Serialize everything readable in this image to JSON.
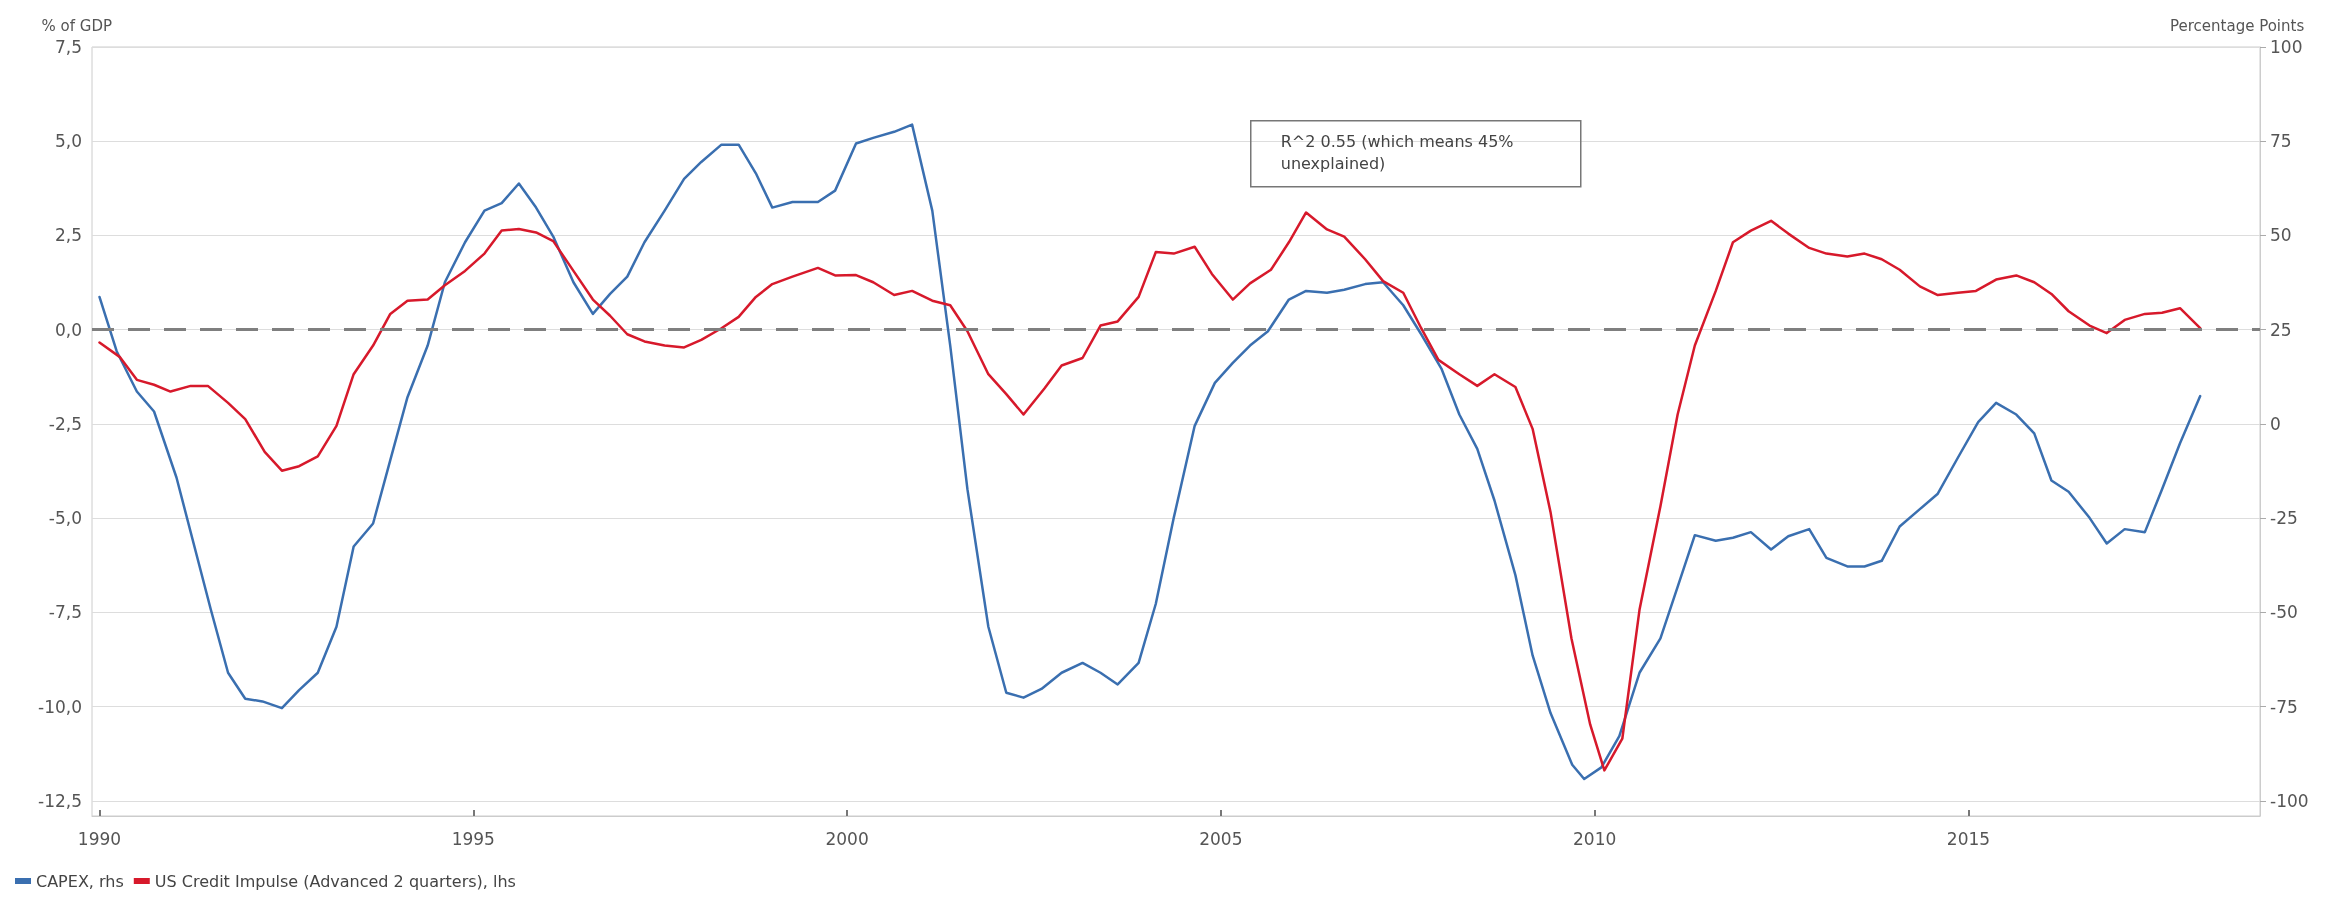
{
  "chart_data": {
    "type": "line",
    "ylabel": "% of GDP",
    "y2label": "Percentage Points",
    "xlim": [
      1989.9,
      2018.9
    ],
    "xticks": [
      1990,
      1995,
      2000,
      2005,
      2010,
      2015
    ],
    "ylim": [
      -12.9,
      7.5
    ],
    "yticks": [
      {
        "value": -12.5,
        "label": "-12,5"
      },
      {
        "value": -10,
        "label": "-10,0"
      },
      {
        "value": -7.5,
        "label": "-7,5"
      },
      {
        "value": -5,
        "label": "-5,0"
      },
      {
        "value": -2.5,
        "label": "-2,5"
      },
      {
        "value": 0,
        "label": "0,0"
      },
      {
        "value": 2.5,
        "label": "2,5"
      },
      {
        "value": 5,
        "label": "5,0"
      },
      {
        "value": 7.5,
        "label": "7,5"
      }
    ],
    "y2lim": [
      -104,
      100
    ],
    "y2ticks": [
      -100,
      -75,
      -50,
      -25,
      0,
      25,
      50,
      75,
      100
    ],
    "grid": "y",
    "legend": "bottom left",
    "line_style": "solid",
    "marker": "none",
    "ref_lines": [
      {
        "axis": "y",
        "value": 0,
        "color": "#7f7f7f",
        "line_style": "dashed"
      }
    ],
    "annotations": [
      "R^2 0.55 (which means 45% unexplained)"
    ],
    "series": [
      {
        "name": "CAPEX, rhs",
        "color": "#3a6fb0",
        "axis": "y2",
        "x": [
          1990.0,
          1990.23,
          1990.5,
          1990.73,
          1991.03,
          1991.49,
          1991.72,
          1991.95,
          1992.18,
          1992.44,
          1992.67,
          1992.92,
          1993.17,
          1993.4,
          1993.66,
          1993.89,
          1994.12,
          1994.39,
          1994.62,
          1994.89,
          1995.15,
          1995.38,
          1995.61,
          1995.84,
          1996.07,
          1996.34,
          1996.6,
          1996.83,
          1997.06,
          1997.29,
          1997.56,
          1997.82,
          1998.05,
          1998.32,
          1998.55,
          1998.78,
          1999.0,
          1999.27,
          1999.61,
          1999.84,
          2000.12,
          2000.35,
          2000.63,
          2000.87,
          2001.14,
          2001.38,
          2001.61,
          2001.89,
          2002.13,
          2002.36,
          2002.6,
          2002.87,
          2003.15,
          2003.39,
          2003.62,
          2003.9,
          2004.13,
          2004.37,
          2004.65,
          2004.92,
          2005.16,
          2005.39,
          2005.63,
          2005.91,
          2006.14,
          2006.42,
          2006.65,
          2006.93,
          2007.17,
          2007.44,
          2007.68,
          2007.95,
          2008.19,
          2008.43,
          2008.66,
          2008.94,
          2009.17,
          2009.41,
          2009.7,
          2009.86,
          2010.09,
          2010.33,
          2010.6,
          2010.88,
          2011.11,
          2011.34,
          2011.62,
          2011.85,
          2012.09,
          2012.36,
          2012.59,
          2012.87,
          2013.1,
          2013.38,
          2013.61,
          2013.84,
          2014.08,
          2014.35,
          2014.59,
          2014.86,
          2015.13,
          2015.37,
          2015.64,
          2015.88,
          2016.11,
          2016.34,
          2016.62,
          2016.85,
          2017.09,
          2017.36,
          2017.59,
          2017.83,
          2018.1
        ],
        "values": [
          33.7,
          19.3,
          8.6,
          3.3,
          -14.2,
          -49.3,
          -66,
          -72.9,
          -73.6,
          -75.4,
          -70.6,
          -66,
          -53.8,
          -32.5,
          -26.4,
          -9.6,
          7.1,
          20.8,
          37.6,
          48.2,
          56.6,
          58.6,
          63.8,
          57.4,
          49.7,
          37.6,
          29.2,
          34.5,
          39.1,
          48.2,
          56.6,
          65,
          69.5,
          74.1,
          74.1,
          66.5,
          57.4,
          58.9,
          58.9,
          61.9,
          74.4,
          75.9,
          77.5,
          79.4,
          56.6,
          20.8,
          -17.3,
          -53.8,
          -71.3,
          -72.6,
          -70.3,
          -66,
          -63.4,
          -66,
          -69.1,
          -63.4,
          -47.7,
          -24.9,
          -0.5,
          10.9,
          16.2,
          20.8,
          24.6,
          33,
          35.3,
          34.8,
          35.6,
          37.1,
          37.6,
          31.5,
          23.8,
          14.7,
          2.5,
          -6.6,
          -20.3,
          -40.1,
          -61.4,
          -76.7,
          -90.4,
          -94.2,
          -91.1,
          -82.8,
          -66,
          -56.9,
          -43.2,
          -29.5,
          -31,
          -30.2,
          -28.7,
          -33.3,
          -29.8,
          -27.9,
          -35.5,
          -37.8,
          -37.8,
          -36.3,
          -27.2,
          -22.6,
          -18.5,
          -8.9,
          0.5,
          5.6,
          2.5,
          -2.5,
          -15,
          -18,
          -24.9,
          -31.7,
          -27.9,
          -28.7,
          -17.3,
          -5.1,
          7.4
        ]
      },
      {
        "name": "US Credit Impulse (Advanced 2 quarters), lhs",
        "color": "#d7192b",
        "x": [
          1990.0,
          1990.27,
          1990.5,
          1990.73,
          1990.95,
          1991.22,
          1991.45,
          1991.72,
          1991.95,
          1992.21,
          1992.44,
          1992.67,
          1992.92,
          1993.17,
          1993.4,
          1993.66,
          1993.89,
          1994.12,
          1994.39,
          1994.62,
          1994.89,
          1995.15,
          1995.38,
          1995.61,
          1995.84,
          1996.07,
          1996.34,
          1996.6,
          1996.83,
          1997.06,
          1997.29,
          1997.56,
          1997.82,
          1998.05,
          1998.32,
          1998.55,
          1998.78,
          1999.0,
          1999.27,
          1999.61,
          1999.84,
          2000.12,
          2000.35,
          2000.63,
          2000.87,
          2001.14,
          2001.38,
          2001.61,
          2001.89,
          2002.13,
          2002.36,
          2002.64,
          2002.87,
          2003.15,
          2003.39,
          2003.62,
          2003.9,
          2004.13,
          2004.37,
          2004.65,
          2004.88,
          2005.16,
          2005.39,
          2005.67,
          2005.91,
          2006.14,
          2006.42,
          2006.65,
          2006.93,
          2007.17,
          2007.44,
          2007.68,
          2007.91,
          2008.19,
          2008.43,
          2008.66,
          2008.94,
          2009.17,
          2009.41,
          2009.69,
          2009.94,
          2010.13,
          2010.37,
          2010.6,
          2010.88,
          2011.11,
          2011.34,
          2011.62,
          2011.85,
          2012.09,
          2012.36,
          2012.59,
          2012.87,
          2013.1,
          2013.38,
          2013.61,
          2013.84,
          2014.08,
          2014.35,
          2014.59,
          2014.86,
          2015.1,
          2015.37,
          2015.64,
          2015.88,
          2016.11,
          2016.34,
          2016.62,
          2016.85,
          2017.09,
          2017.36,
          2017.59,
          2017.83,
          2018.1
        ],
        "values": [
          -0.34,
          -0.72,
          -1.33,
          -1.46,
          -1.64,
          -1.49,
          -1.49,
          -1.94,
          -2.37,
          -3.24,
          -3.74,
          -3.62,
          -3.36,
          -2.55,
          -1.18,
          -0.42,
          0.42,
          0.77,
          0.8,
          1.18,
          1.56,
          2.02,
          2.63,
          2.67,
          2.58,
          2.35,
          1.56,
          0.8,
          0.37,
          -0.12,
          -0.31,
          -0.42,
          -0.47,
          -0.27,
          0.04,
          0.34,
          0.87,
          1.21,
          1.41,
          1.64,
          1.44,
          1.45,
          1.26,
          0.92,
          1.03,
          0.77,
          0.65,
          -0.04,
          -1.18,
          -1.71,
          -2.25,
          -1.56,
          -0.95,
          -0.75,
          0.11,
          0.22,
          0.87,
          2.06,
          2.02,
          2.2,
          1.48,
          0.8,
          1.23,
          1.59,
          2.32,
          3.11,
          2.66,
          2.47,
          1.87,
          1.29,
          0.98,
          0.04,
          -0.8,
          -1.18,
          -1.49,
          -1.18,
          -1.52,
          -2.63,
          -4.84,
          -8.19,
          -10.47,
          -11.69,
          -10.85,
          -7.43,
          -4.68,
          -2.25,
          -0.42,
          1.03,
          2.32,
          2.63,
          2.89,
          2.55,
          2.17,
          2.02,
          1.94,
          2.02,
          1.87,
          1.59,
          1.15,
          0.92,
          0.98,
          1.03,
          1.33,
          1.44,
          1.26,
          0.95,
          0.49,
          0.11,
          -0.09,
          0.26,
          0.42,
          0.45,
          0.57,
          0.04
        ]
      }
    ]
  }
}
